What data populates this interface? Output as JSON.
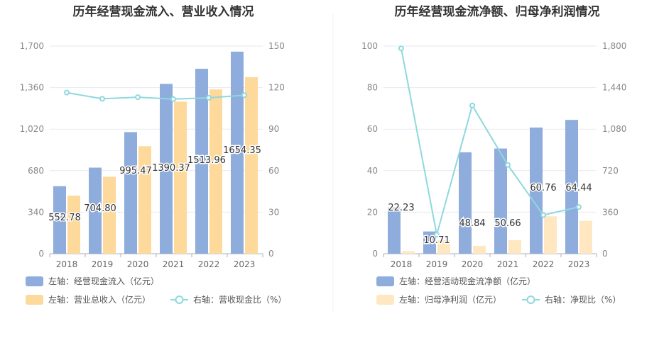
{
  "chart_data": [
    {
      "type": "bar",
      "title": "历年经营现金流入、营业收入情况",
      "categories": [
        "2018",
        "2019",
        "2020",
        "2021",
        "2022",
        "2023"
      ],
      "left_axis": {
        "ticks": [
          "0",
          "340",
          "680",
          "1,020",
          "1,360",
          "1,700"
        ],
        "ylim": [
          0,
          1700
        ]
      },
      "right_axis": {
        "ticks": [
          "0",
          "30",
          "60",
          "90",
          "120",
          "150"
        ],
        "ylim": [
          0,
          150
        ]
      },
      "series": [
        {
          "name": "左轴：经营现金流入（亿元）",
          "kind": "bar",
          "axis": "left",
          "color": "#8eacdc",
          "values": [
            552.78,
            704.8,
            995.47,
            1390.37,
            1513.96,
            1654.35
          ],
          "labels": [
            "552.78",
            "704.80",
            "995.47",
            "1390.37",
            "1513.96",
            "1654.35"
          ]
        },
        {
          "name": "左轴：营业总收入（亿元）",
          "kind": "bar",
          "axis": "left",
          "color": "#fdd99b",
          "values": [
            475,
            630,
            880,
            1245,
            1345,
            1445
          ]
        },
        {
          "name": "右轴：营收现金比（%）",
          "kind": "line",
          "axis": "right",
          "color": "#8fd8de",
          "values": [
            116.4,
            111.9,
            113.1,
            111.7,
            112.6,
            114.5
          ]
        }
      ]
    },
    {
      "type": "bar",
      "title": "历年经营现金流净额、归母净利润情况",
      "categories": [
        "2018",
        "2019",
        "2020",
        "2021",
        "2022",
        "2023"
      ],
      "left_axis": {
        "ticks": [
          "0",
          "20",
          "40",
          "60",
          "80",
          "100"
        ],
        "ylim": [
          0,
          100
        ]
      },
      "right_axis": {
        "ticks": [
          "0",
          "360",
          "720",
          "1,080",
          "1,440",
          "1,800"
        ],
        "ylim": [
          0,
          1800
        ]
      },
      "series": [
        {
          "name": "左轴：经营活动现金流净额（亿元）",
          "kind": "bar",
          "axis": "left",
          "color": "#8eacdc",
          "values": [
            22.23,
            10.71,
            48.84,
            50.66,
            60.76,
            64.44
          ],
          "labels": [
            "22.23",
            "10.71",
            "48.84",
            "50.66",
            "60.76",
            "64.44"
          ]
        },
        {
          "name": "左轴：归母净利润（亿元）",
          "kind": "bar",
          "axis": "left",
          "color": "#fee7c1",
          "values": [
            1.2,
            6.5,
            3.8,
            6.5,
            18.0,
            15.8
          ]
        },
        {
          "name": "右轴：净现比（%）",
          "kind": "line",
          "axis": "right",
          "color": "#8fd8de",
          "values": [
            1780,
            165,
            1285,
            770,
            335,
            405
          ]
        }
      ]
    }
  ]
}
